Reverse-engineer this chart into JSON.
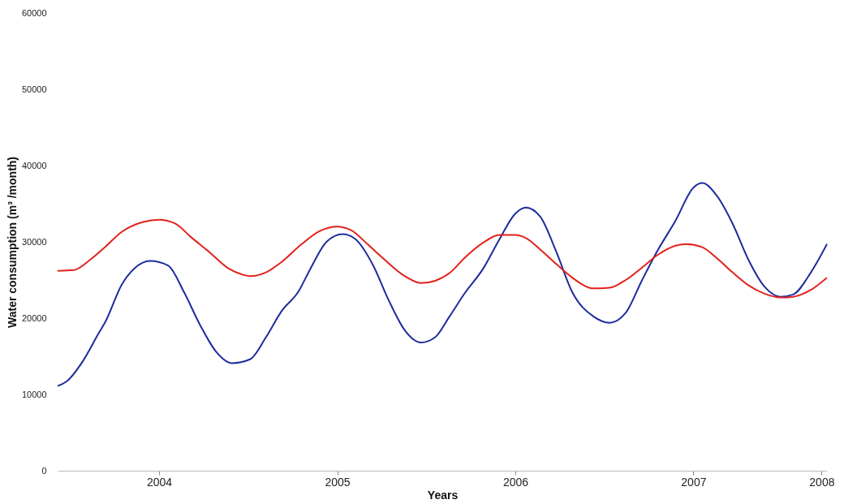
{
  "chart_data": {
    "type": "line",
    "xlabel": "Years",
    "ylabel": "Water consumption (m³ /month)",
    "xlim": [
      2003.93,
      2008.25
    ],
    "xticks": [
      {
        "value": 2004.5,
        "label": "2004"
      },
      {
        "value": 2005.5,
        "label": "2005"
      },
      {
        "value": 2006.5,
        "label": "2006"
      },
      {
        "value": 2007.5,
        "label": "2007"
      },
      {
        "value": 2008.22,
        "label": "2008"
      }
    ],
    "ylim": [
      0,
      60000
    ],
    "yticks": [
      0,
      10000,
      20000,
      30000,
      40000,
      50000,
      60000
    ],
    "grid": false,
    "legend": false,
    "marker": "none",
    "line_style": "solid",
    "series": [
      {
        "color": "#1c2c9c",
        "x": [
          2003.93,
          2003.98,
          2004.07,
          2004.16,
          2004.2,
          2004.29,
          2004.36,
          2004.45,
          2004.55,
          2004.64,
          2004.73,
          2004.82,
          2004.91,
          2005.01,
          2005.1,
          2005.19,
          2005.28,
          2005.35,
          2005.44,
          2005.53,
          2005.6,
          2005.7,
          2005.79,
          2005.88,
          2005.97,
          2006.05,
          2006.13,
          2006.22,
          2006.32,
          2006.41,
          2006.5,
          2006.56,
          2006.64,
          2006.73,
          2006.82,
          2006.94,
          2007.03,
          2007.12,
          2007.21,
          2007.3,
          2007.4,
          2007.5,
          2007.55,
          2007.63,
          2007.72,
          2007.81,
          2007.9,
          2007.99,
          2008.06,
          2008.16,
          2008.25
        ],
        "values": [
          11100,
          11700,
          14300,
          18000,
          19600,
          24400,
          26500,
          27500,
          26900,
          23400,
          19100,
          15600,
          14100,
          14600,
          17500,
          21000,
          23400,
          26500,
          30000,
          31000,
          30400,
          27000,
          22300,
          18400,
          16800,
          17500,
          20200,
          23400,
          26500,
          30300,
          33700,
          34500,
          33300,
          28700,
          23400,
          20200,
          19400,
          20700,
          24900,
          28900,
          32800,
          37100,
          37700,
          36100,
          32400,
          27600,
          24100,
          22800,
          23100,
          26000,
          29700
        ]
      },
      {
        "color": "#e3211b",
        "x": [
          2003.93,
          2004.02,
          2004.11,
          2004.2,
          2004.29,
          2004.41,
          2004.5,
          2004.59,
          2004.68,
          2004.78,
          2004.89,
          2004.97,
          2005.01,
          2005.1,
          2005.19,
          2005.3,
          2005.4,
          2005.5,
          2005.58,
          2005.67,
          2005.76,
          2005.88,
          2005.97,
          2006.05,
          2006.13,
          2006.22,
          2006.32,
          2006.41,
          2006.5,
          2006.56,
          2006.64,
          2006.73,
          2006.82,
          2006.94,
          2007.03,
          2007.12,
          2007.21,
          2007.3,
          2007.4,
          2007.46,
          2007.55,
          2007.63,
          2007.72,
          2007.81,
          2007.9,
          2007.99,
          2008.06,
          2008.16,
          2008.25
        ],
        "values": [
          26200,
          26300,
          27600,
          29400,
          31300,
          32600,
          32900,
          32400,
          30600,
          28700,
          26500,
          25700,
          25500,
          26000,
          27400,
          29700,
          31400,
          32000,
          31500,
          29700,
          27800,
          25500,
          24600,
          24900,
          25900,
          28000,
          29900,
          30900,
          30900,
          30500,
          29000,
          27100,
          25300,
          23900,
          24000,
          25000,
          26600,
          28300,
          29500,
          29700,
          29300,
          27900,
          26000,
          24300,
          23200,
          22700,
          22800,
          23700,
          25300
        ]
      }
    ]
  }
}
